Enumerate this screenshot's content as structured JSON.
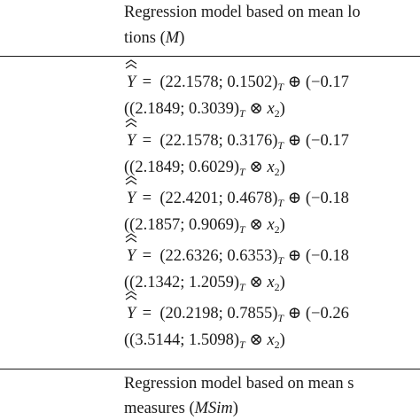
{
  "header": {
    "line1": "Regression model based on mean lo",
    "line2": "tions (M)"
  },
  "equations": [
    {
      "center": "(22.1578; 0.1502)",
      "tail": "(−0.17",
      "spread": "((2.1849; 0.3039)"
    },
    {
      "center": "(22.1578; 0.3176)",
      "tail": "(−0.17",
      "spread": "((2.1849; 0.6029)"
    },
    {
      "center": "(22.4201; 0.4678)",
      "tail": "(−0.18",
      "spread": "((2.1857; 0.9069)"
    },
    {
      "center": "(22.6326; 0.6353)",
      "tail": "(−0.18",
      "spread": "((2.1342; 1.2059)"
    },
    {
      "center": "(20.2198; 0.7855)",
      "tail": "(−0.26",
      "spread": "((3.5144; 1.5098)"
    }
  ],
  "footer": {
    "line1": "Regression model based on mean s",
    "line2": "measures (MSim)"
  },
  "symbols": {
    "y": "Y",
    "eq": "=",
    "oplus": "⊕",
    "otimes": "⊗",
    "sub_t": "T",
    "x": "x",
    "sub_2": "2"
  }
}
